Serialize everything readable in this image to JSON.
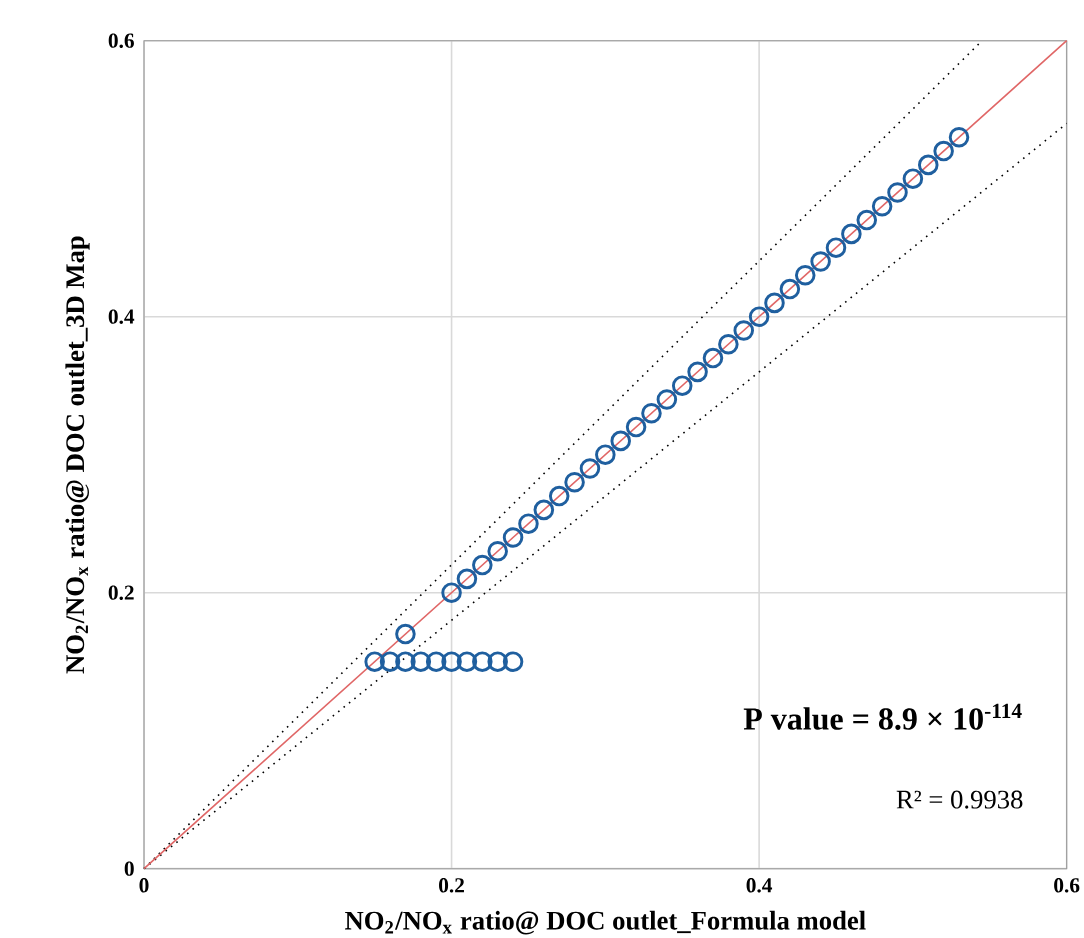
{
  "chart_data": {
    "type": "scatter",
    "xlabel": "NO$_{2}$/NO$_{x}$ ratio@ DOC outlet_Formula model",
    "ylabel": "NO$_{2}$/NO$_{x}$ ratio@ DOC outlet_3D Map",
    "xlim": [
      0,
      0.6
    ],
    "ylim": [
      0,
      0.6
    ],
    "xticks": [
      0,
      0.2,
      0.4,
      0.6
    ],
    "yticks": [
      0,
      0.2,
      0.4,
      0.6
    ],
    "grid": true,
    "annotations": [
      "P value = 8.9 × 10$^{-114}$",
      "R² = 0.9938"
    ],
    "series": [
      {
        "type": "line",
        "color": "#000000",
        "line_style": "dotted",
        "marker": "none",
        "x": [
          0,
          0.545
        ],
        "values": [
          0,
          0.6
        ]
      },
      {
        "type": "line",
        "color": "#000000",
        "line_style": "dotted",
        "marker": "none",
        "x": [
          0,
          0.6
        ],
        "values": [
          0,
          0.54
        ]
      },
      {
        "type": "line",
        "color": "#e06666",
        "line_style": "solid",
        "marker": "none",
        "x": [
          0,
          0.6
        ],
        "values": [
          0,
          0.6
        ]
      },
      {
        "color": "#1f5f9f",
        "marker": "circle",
        "x": [
          0.2,
          0.21,
          0.22,
          0.23,
          0.24,
          0.25,
          0.26,
          0.27,
          0.28,
          0.29,
          0.3,
          0.31,
          0.32,
          0.33,
          0.34,
          0.35,
          0.36,
          0.37,
          0.38,
          0.39,
          0.4,
          0.41,
          0.42,
          0.43,
          0.44,
          0.45,
          0.46,
          0.47,
          0.48,
          0.49,
          0.5,
          0.51,
          0.52,
          0.53,
          0.17,
          0.15,
          0.16,
          0.17,
          0.18,
          0.19,
          0.2,
          0.21,
          0.22,
          0.23,
          0.24
        ],
        "values": [
          0.2,
          0.21,
          0.22,
          0.23,
          0.24,
          0.25,
          0.26,
          0.27,
          0.28,
          0.29,
          0.3,
          0.31,
          0.32,
          0.33,
          0.34,
          0.35,
          0.36,
          0.37,
          0.38,
          0.39,
          0.4,
          0.41,
          0.42,
          0.43,
          0.44,
          0.45,
          0.46,
          0.47,
          0.48,
          0.49,
          0.5,
          0.51,
          0.52,
          0.53,
          0.17,
          0.15,
          0.15,
          0.15,
          0.15,
          0.15,
          0.15,
          0.15,
          0.15,
          0.15,
          0.15
        ]
      }
    ]
  }
}
